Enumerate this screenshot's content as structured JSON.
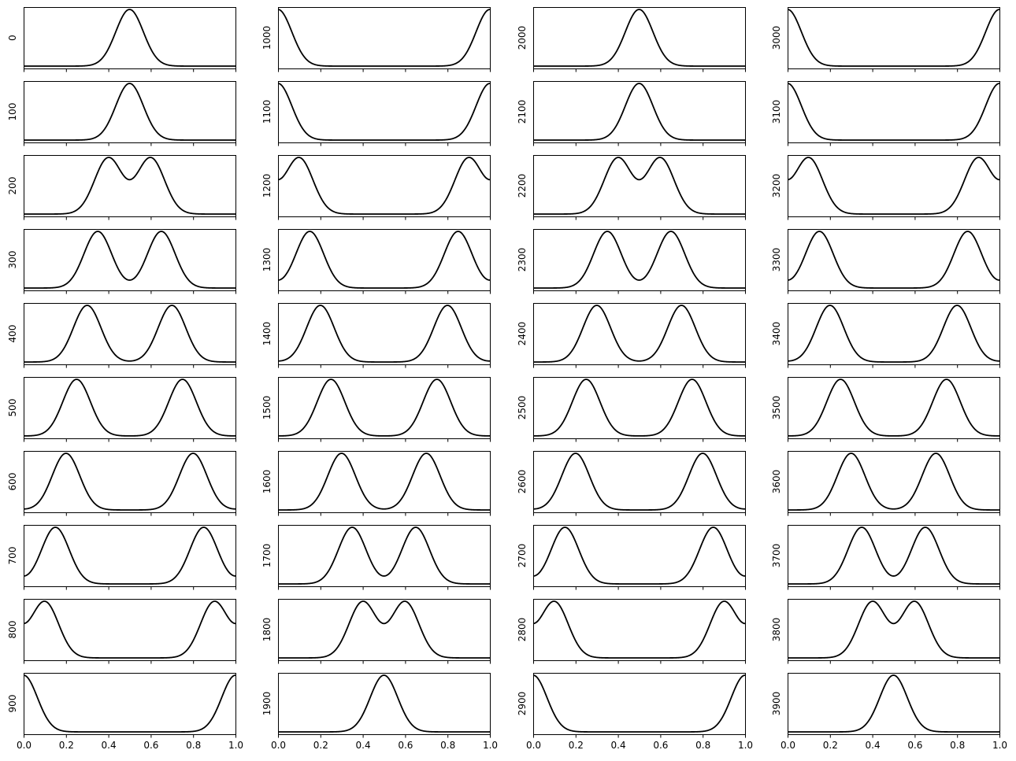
{
  "chart_data": {
    "type": "line",
    "layout": {
      "rows": 10,
      "columns": 4
    },
    "shared_x": true,
    "xlim": [
      0,
      1
    ],
    "x_ticks": [
      "0.0",
      "0.2",
      "0.4",
      "0.6",
      "0.8",
      "1.0"
    ],
    "y_ticks": [],
    "grid": false,
    "legend": "none",
    "line_color": "#000000",
    "curve_model": "two gaussian bumps mirrored about x = 0.5 (x = c and x = 1 - c), sigma ~ 0.06-0.07, periodic; y range ~[0, 1]",
    "panels": [
      {
        "ylabel": "0",
        "peak_centers": [
          0.5,
          0.5
        ]
      },
      {
        "ylabel": "100",
        "peak_centers": [
          0.5,
          0.5
        ]
      },
      {
        "ylabel": "200",
        "peak_centers": [
          0.4,
          0.6
        ]
      },
      {
        "ylabel": "300",
        "peak_centers": [
          0.35,
          0.65
        ]
      },
      {
        "ylabel": "400",
        "peak_centers": [
          0.3,
          0.7
        ]
      },
      {
        "ylabel": "500",
        "peak_centers": [
          0.25,
          0.75
        ]
      },
      {
        "ylabel": "600",
        "peak_centers": [
          0.2,
          0.8
        ]
      },
      {
        "ylabel": "700",
        "peak_centers": [
          0.15,
          0.85
        ]
      },
      {
        "ylabel": "800",
        "peak_centers": [
          0.1,
          0.9
        ]
      },
      {
        "ylabel": "900",
        "peak_centers": [
          0.0,
          1.0
        ]
      },
      {
        "ylabel": "1000",
        "peak_centers": [
          0.0,
          1.0
        ]
      },
      {
        "ylabel": "1100",
        "peak_centers": [
          0.0,
          1.0
        ]
      },
      {
        "ylabel": "1200",
        "peak_centers": [
          0.1,
          0.9
        ]
      },
      {
        "ylabel": "1300",
        "peak_centers": [
          0.15,
          0.85
        ]
      },
      {
        "ylabel": "1400",
        "peak_centers": [
          0.2,
          0.8
        ]
      },
      {
        "ylabel": "1500",
        "peak_centers": [
          0.25,
          0.75
        ]
      },
      {
        "ylabel": "1600",
        "peak_centers": [
          0.3,
          0.7
        ]
      },
      {
        "ylabel": "1700",
        "peak_centers": [
          0.35,
          0.65
        ]
      },
      {
        "ylabel": "1800",
        "peak_centers": [
          0.4,
          0.6
        ]
      },
      {
        "ylabel": "1900",
        "peak_centers": [
          0.5,
          0.5
        ]
      },
      {
        "ylabel": "2000",
        "peak_centers": [
          0.5,
          0.5
        ]
      },
      {
        "ylabel": "2100",
        "peak_centers": [
          0.5,
          0.5
        ]
      },
      {
        "ylabel": "2200",
        "peak_centers": [
          0.4,
          0.6
        ]
      },
      {
        "ylabel": "2300",
        "peak_centers": [
          0.35,
          0.65
        ]
      },
      {
        "ylabel": "2400",
        "peak_centers": [
          0.3,
          0.7
        ]
      },
      {
        "ylabel": "2500",
        "peak_centers": [
          0.25,
          0.75
        ]
      },
      {
        "ylabel": "2600",
        "peak_centers": [
          0.2,
          0.8
        ]
      },
      {
        "ylabel": "2700",
        "peak_centers": [
          0.15,
          0.85
        ]
      },
      {
        "ylabel": "2800",
        "peak_centers": [
          0.1,
          0.9
        ]
      },
      {
        "ylabel": "2900",
        "peak_centers": [
          0.0,
          1.0
        ]
      },
      {
        "ylabel": "3000",
        "peak_centers": [
          0.0,
          1.0
        ]
      },
      {
        "ylabel": "3100",
        "peak_centers": [
          0.0,
          1.0
        ]
      },
      {
        "ylabel": "3200",
        "peak_centers": [
          0.1,
          0.9
        ]
      },
      {
        "ylabel": "3300",
        "peak_centers": [
          0.15,
          0.85
        ]
      },
      {
        "ylabel": "3400",
        "peak_centers": [
          0.2,
          0.8
        ]
      },
      {
        "ylabel": "3500",
        "peak_centers": [
          0.25,
          0.75
        ]
      },
      {
        "ylabel": "3600",
        "peak_centers": [
          0.3,
          0.7
        ]
      },
      {
        "ylabel": "3700",
        "peak_centers": [
          0.35,
          0.65
        ]
      },
      {
        "ylabel": "3800",
        "peak_centers": [
          0.4,
          0.6
        ]
      },
      {
        "ylabel": "3900",
        "peak_centers": [
          0.5,
          0.5
        ]
      }
    ]
  }
}
